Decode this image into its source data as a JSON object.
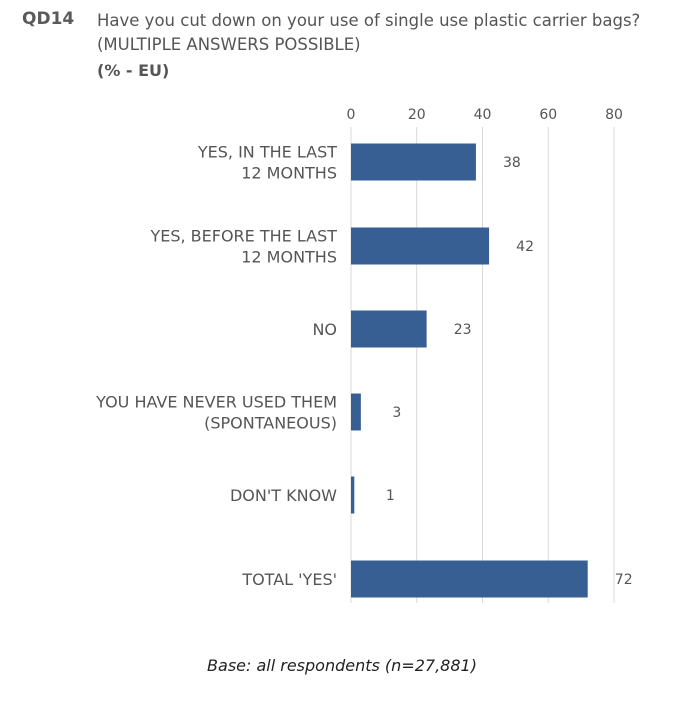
{
  "question": {
    "code": "QD14",
    "text": "Have you cut down on your use of single use plastic carrier bags? (MULTIPLE ANSWERS POSSIBLE)",
    "subtitle": "(% - EU)"
  },
  "footer": {
    "base": "Base: all respondents (n=27,881)"
  },
  "colors": {
    "bar": "#375f93",
    "grid": "#d9d9d9",
    "text": "#555555"
  },
  "chart_data": {
    "type": "bar",
    "orientation": "horizontal",
    "categories": [
      [
        "YES, IN THE LAST",
        "12 MONTHS"
      ],
      [
        "YES, BEFORE THE LAST",
        "12 MONTHS"
      ],
      [
        "NO"
      ],
      [
        "YOU HAVE NEVER USED THEM",
        "(SPONTANEOUS)"
      ],
      [
        "DON'T KNOW"
      ],
      [
        "TOTAL 'YES'"
      ]
    ],
    "values": [
      38,
      42,
      23,
      3,
      1,
      72
    ],
    "xlim": [
      0,
      80
    ],
    "xticks": [
      0,
      20,
      40,
      60,
      80
    ],
    "axis_position": "top",
    "grid": true,
    "title": "Have you cut down on your use of single use plastic carrier bags? (MULTIPLE ANSWERS POSSIBLE)",
    "unit": "% - EU"
  }
}
